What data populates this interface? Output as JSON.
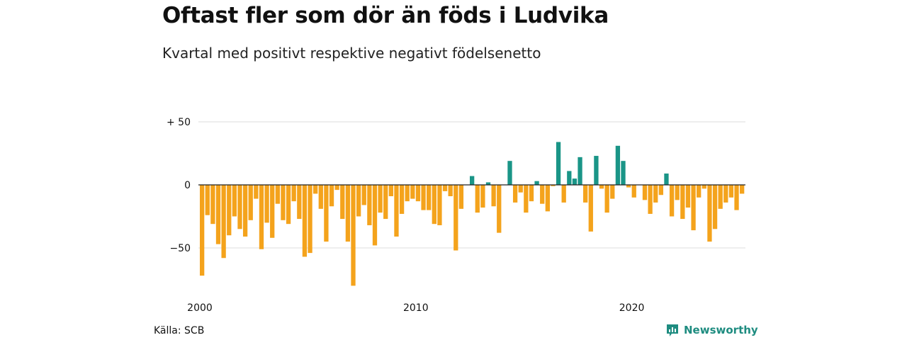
{
  "title": "Oftast fler som dör än föds i Ludvika",
  "subtitle": "Kvartal med positivt respektive negativt födelsenetto",
  "source": "Källa: SCB",
  "brand": "Newsworthy",
  "colors": {
    "positive": "#1a9587",
    "negative": "#f4a31c",
    "gridline": "#dcdcdc",
    "zeroline": "#222222",
    "brand": "#1e8c80"
  },
  "chart_data": {
    "type": "bar",
    "x_unit": "quarter",
    "x_start": "2000 Q1",
    "y_tick_labels": [
      "+ 50",
      "0",
      "−50"
    ],
    "y_tick_values": [
      50,
      0,
      -50
    ],
    "x_tick_labels": [
      "2000",
      "2010",
      "2020"
    ],
    "x_tick_quarter_index": [
      0,
      40,
      80
    ],
    "ylim": [
      -80,
      55
    ],
    "grid": true,
    "legend": "none",
    "values": [
      -72,
      -24,
      -31,
      -47,
      -58,
      -40,
      -25,
      -35,
      -41,
      -28,
      -11,
      -51,
      -30,
      -42,
      -15,
      -28,
      -31,
      -13,
      -27,
      -57,
      -54,
      -7,
      -19,
      -45,
      -17,
      -4,
      -27,
      -45,
      -80,
      -25,
      -16,
      -32,
      -48,
      -22,
      -27,
      -9,
      -41,
      -23,
      -13,
      -11,
      -13,
      -20,
      -20,
      -31,
      -32,
      -5,
      -9,
      -52,
      -19,
      0,
      7,
      -22,
      -18,
      2,
      -17,
      -38,
      0,
      19,
      -14,
      -6,
      -22,
      -13,
      3,
      -15,
      -21,
      -1,
      34,
      -14,
      11,
      5,
      22,
      -14,
      -37,
      23,
      -3,
      -22,
      -11,
      31,
      19,
      -2,
      -10,
      0,
      -12,
      -23,
      -14,
      -8,
      9,
      -25,
      -12,
      -27,
      -18,
      -36,
      -10,
      -3,
      -45,
      -35,
      -19,
      -14,
      -10,
      -20,
      -7
    ]
  }
}
